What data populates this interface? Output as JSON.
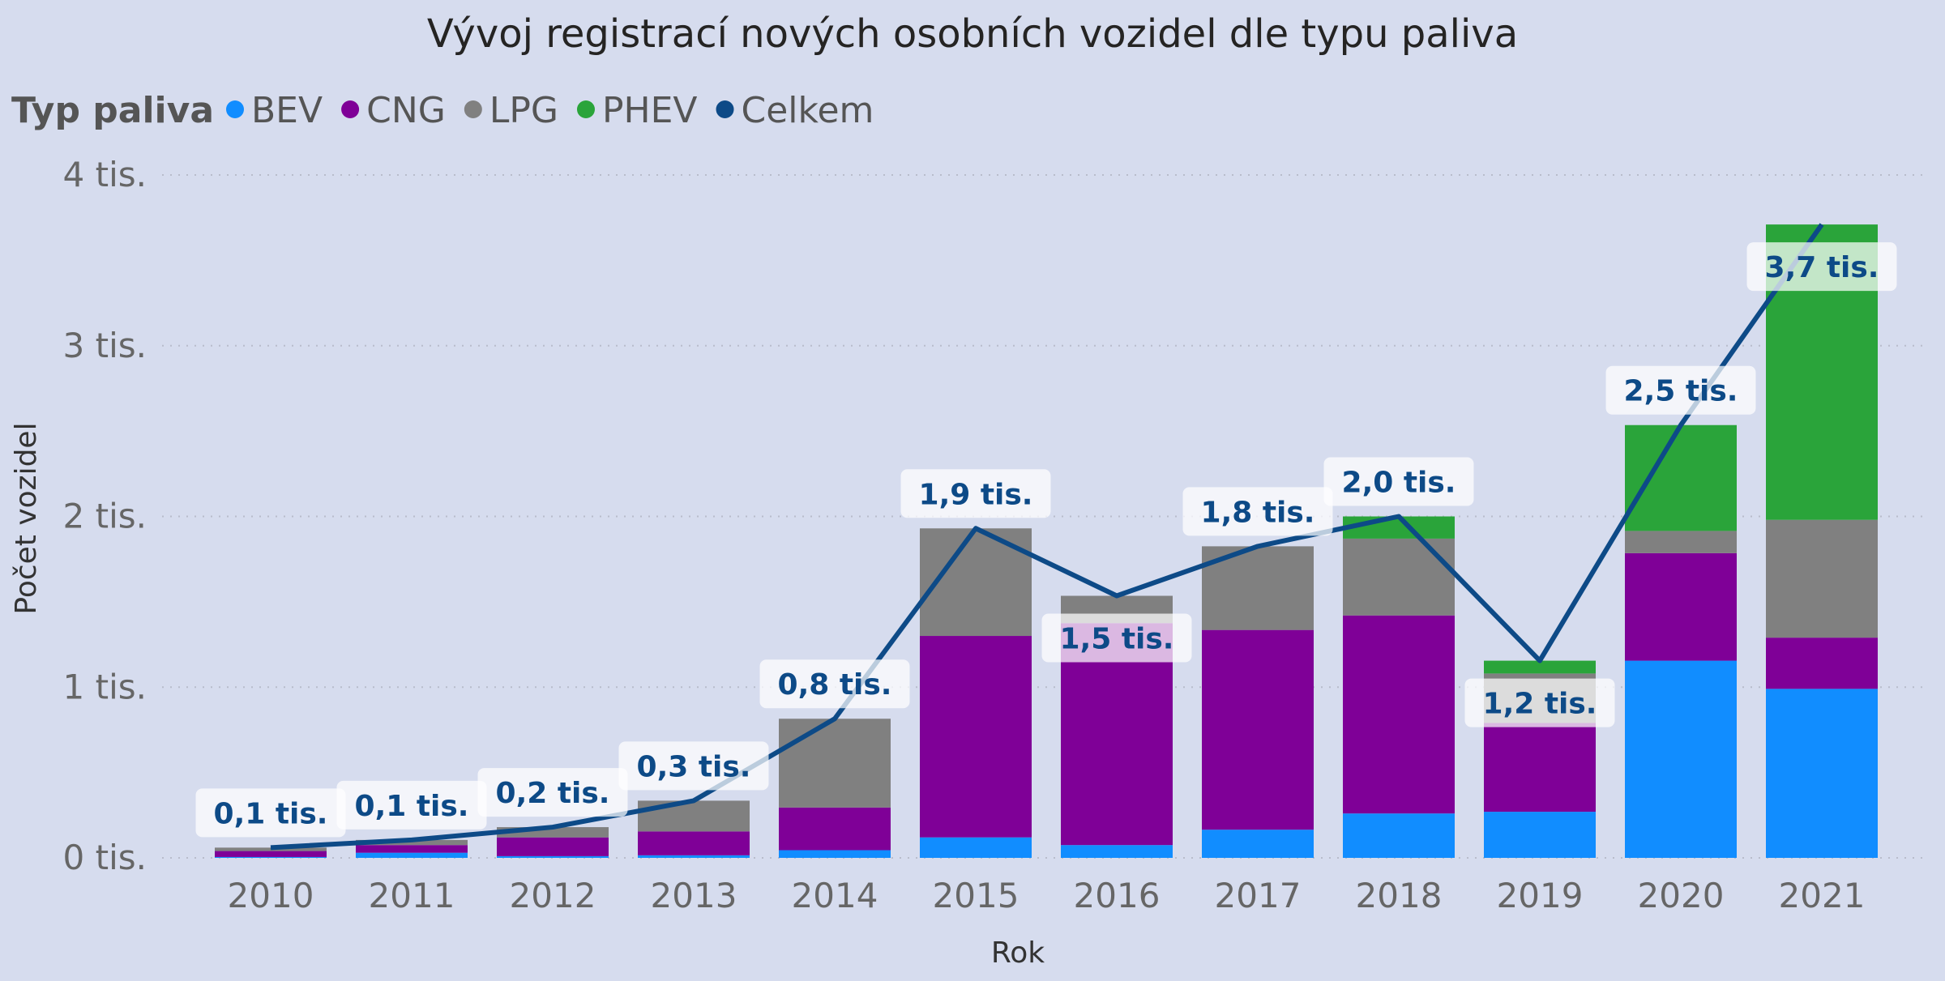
{
  "chart_data": {
    "type": "bar",
    "stacked": true,
    "title": "Vývoj registrací nových osobních vozidel dle typu paliva",
    "legend_title": "Typ paliva",
    "legend_position": "top-left",
    "xlabel": "Rok",
    "ylabel": "Počet vozidel",
    "ylim": [
      0,
      4000
    ],
    "yticks": [
      0,
      1000,
      2000,
      3000,
      4000
    ],
    "ytick_labels": [
      "0 tis.",
      "1 tis.",
      "2 tis.",
      "3 tis.",
      "4 tis."
    ],
    "grid": true,
    "categories": [
      "2010",
      "2011",
      "2012",
      "2013",
      "2014",
      "2015",
      "2016",
      "2017",
      "2018",
      "2019",
      "2020",
      "2021"
    ],
    "series": [
      {
        "name": "BEV",
        "color": "#118dff",
        "values": [
          5,
          30,
          10,
          15,
          45,
          120,
          75,
          165,
          260,
          270,
          1155,
          990
        ]
      },
      {
        "name": "CNG",
        "color": "#7f0097",
        "values": [
          35,
          45,
          110,
          140,
          250,
          1180,
          1300,
          1170,
          1160,
          520,
          630,
          300
        ]
      },
      {
        "name": "LPG",
        "color": "#808080",
        "values": [
          20,
          30,
          60,
          180,
          520,
          630,
          160,
          490,
          450,
          290,
          130,
          690
        ]
      },
      {
        "name": "PHEV",
        "color": "#2aa43a",
        "values": [
          0,
          0,
          0,
          0,
          0,
          0,
          0,
          0,
          130,
          75,
          620,
          1730
        ]
      }
    ],
    "line_series": {
      "name": "Celkem",
      "color": "#0d4a87",
      "values": [
        60,
        105,
        180,
        335,
        815,
        1930,
        1535,
        1825,
        2000,
        1155,
        2535,
        3710
      ],
      "data_labels": [
        "0,1 tis.",
        "0,1 tis.",
        "0,2 tis.",
        "0,3 tis.",
        "0,8 tis.",
        "1,9 tis.",
        "1,5 tis.",
        "1,8 tis.",
        "2,0 tis.",
        "1,2 tis.",
        "2,5 tis.",
        "3,7 tis."
      ]
    }
  }
}
